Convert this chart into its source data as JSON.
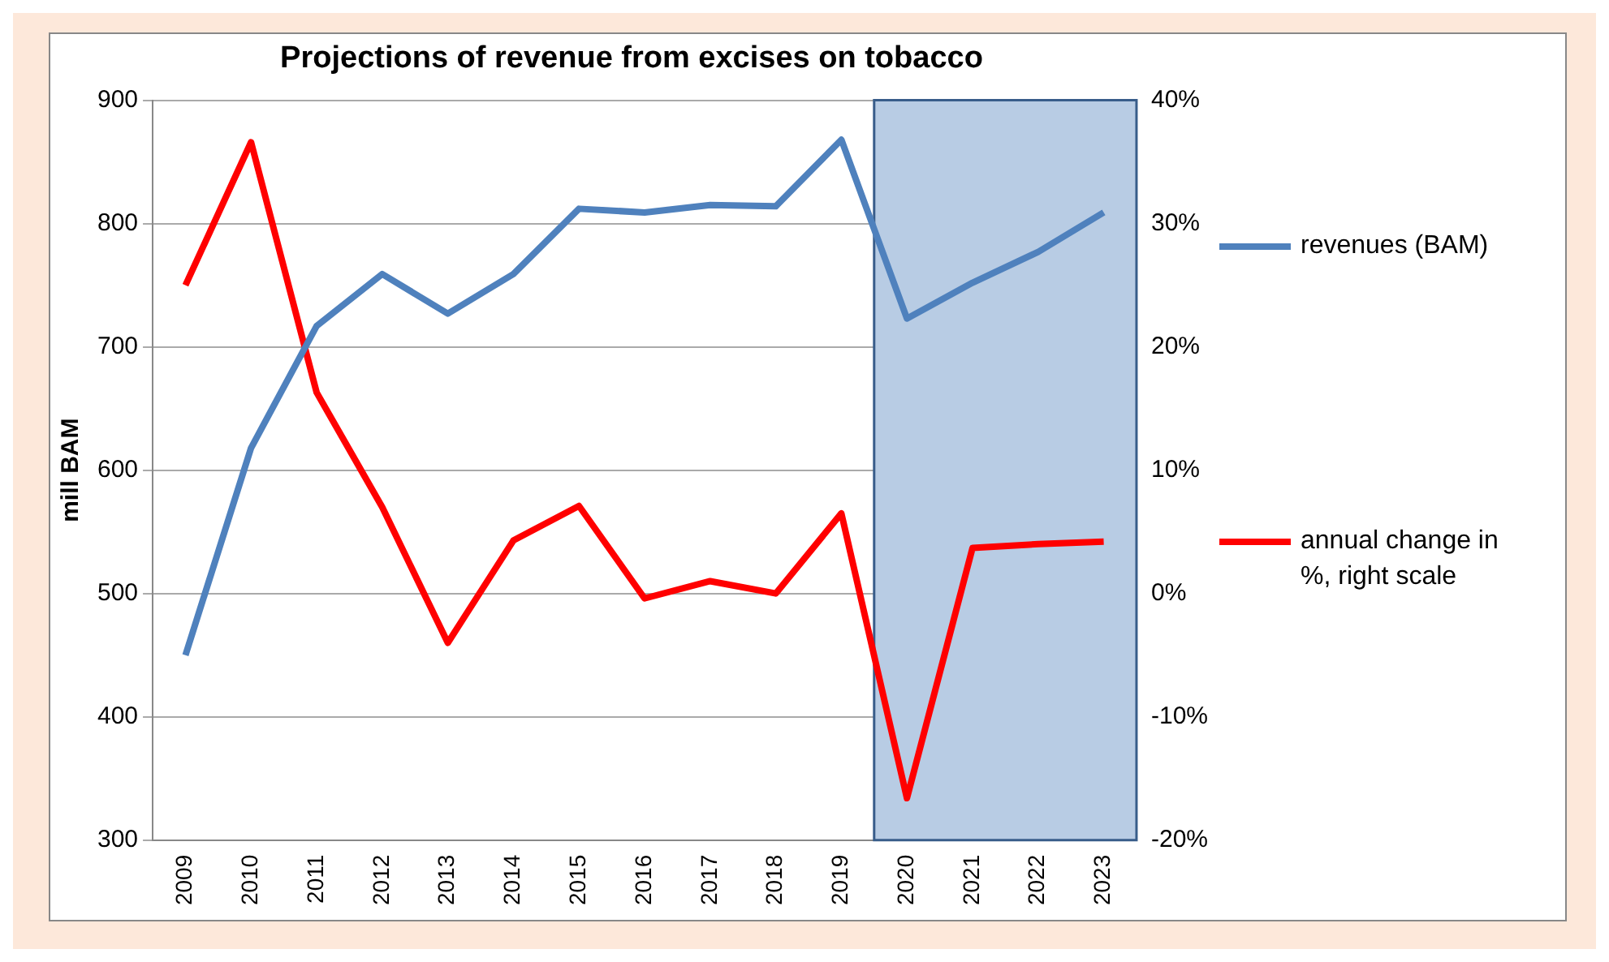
{
  "chart_data": {
    "type": "line",
    "title": "Projections of revenue from excises on tobacco",
    "ylabel": "mill BAM",
    "categories": [
      "2009",
      "2010",
      "2011",
      "2012",
      "2013",
      "2014",
      "2015",
      "2016",
      "2017",
      "2018",
      "2019",
      "2020",
      "2021",
      "2022",
      "2023"
    ],
    "series": [
      {
        "name": "revenues (BAM)",
        "color": "#4f81bd",
        "values": [
          450,
          618,
          717,
          759,
          727,
          759,
          812,
          809,
          815,
          814,
          868,
          723,
          752,
          777,
          809
        ]
      },
      {
        "name": "annual change in %, right scale",
        "color": "#ff0000",
        "axis": "y2",
        "values": [
          25,
          36.6,
          16.3,
          7,
          -4,
          4.3,
          7.1,
          -0.4,
          1,
          0,
          6.5,
          -16.6,
          3.7,
          4,
          4.2
        ]
      }
    ],
    "ylim": [
      300,
      900
    ],
    "yticks": [
      300,
      400,
      500,
      600,
      700,
      800,
      900
    ],
    "y2lim": [
      -20,
      40
    ],
    "y2ticks": [
      {
        "value": -20,
        "label": "-20%"
      },
      {
        "value": -10,
        "label": "-10%"
      },
      {
        "value": 0,
        "label": "0%"
      },
      {
        "value": 10,
        "label": "10%"
      },
      {
        "value": 20,
        "label": "20%"
      },
      {
        "value": 30,
        "label": "30%"
      },
      {
        "value": 40,
        "label": "40%"
      }
    ],
    "bands": [
      {
        "axis": "x",
        "from": "2020",
        "to": "2023",
        "color": "#b8cce4"
      }
    ],
    "grid": "y",
    "legend": "right",
    "marker": "none",
    "line_style": "solid"
  }
}
